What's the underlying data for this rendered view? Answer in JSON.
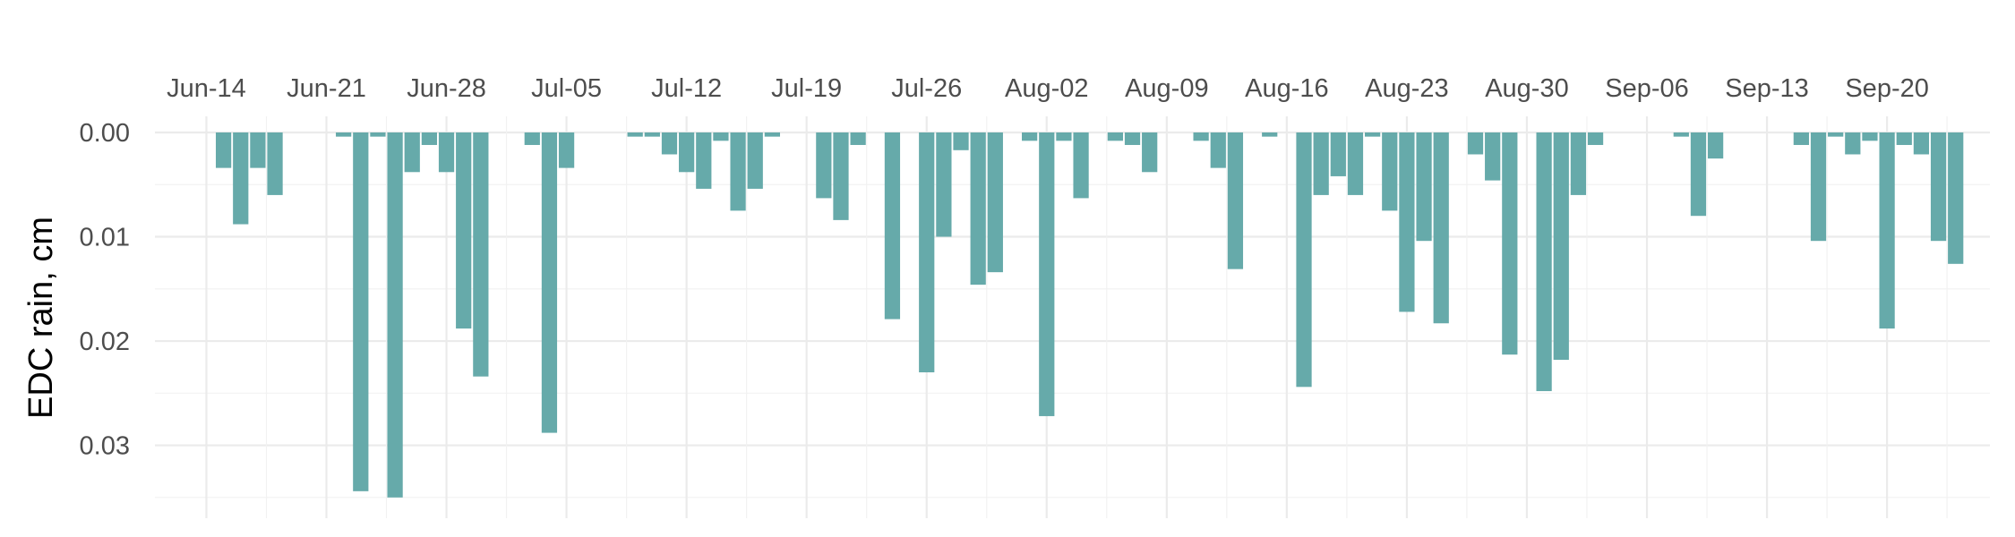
{
  "chart_data": {
    "type": "bar",
    "ylabel": "EDC rain, cm",
    "y_reversed": true,
    "ylim": [
      0,
      0.0351
    ],
    "y_ticks": [
      "0.00",
      "0.01",
      "0.02",
      "0.03"
    ],
    "x_axis_position": "top",
    "x_ticks": [
      "Jun-14",
      "Jun-21",
      "Jun-28",
      "Jul-05",
      "Jul-12",
      "Jul-19",
      "Jul-26",
      "Aug-02",
      "Aug-09",
      "Aug-16",
      "Aug-23",
      "Aug-30",
      "Sep-06",
      "Sep-13",
      "Sep-20"
    ],
    "x_range": [
      "2020-06-11",
      "2020-09-26"
    ],
    "grid": true,
    "bar_color": "#66aaaa",
    "x": [
      "2020-06-13",
      "2020-06-14",
      "2020-06-15",
      "2020-06-16",
      "2020-06-17",
      "2020-06-18",
      "2020-06-19",
      "2020-06-20",
      "2020-06-21",
      "2020-06-22",
      "2020-06-23",
      "2020-06-24",
      "2020-06-25",
      "2020-06-26",
      "2020-06-27",
      "2020-06-28",
      "2020-06-29",
      "2020-06-30",
      "2020-07-01",
      "2020-07-02",
      "2020-07-03",
      "2020-07-04",
      "2020-07-05",
      "2020-07-06",
      "2020-07-07",
      "2020-07-08",
      "2020-07-09",
      "2020-07-10",
      "2020-07-11",
      "2020-07-12",
      "2020-07-13",
      "2020-07-14",
      "2020-07-15",
      "2020-07-16",
      "2020-07-17",
      "2020-07-18",
      "2020-07-19",
      "2020-07-20",
      "2020-07-21",
      "2020-07-22",
      "2020-07-23",
      "2020-07-24",
      "2020-07-25",
      "2020-07-26",
      "2020-07-27",
      "2020-07-28",
      "2020-07-29",
      "2020-07-30",
      "2020-07-31",
      "2020-08-01",
      "2020-08-02",
      "2020-08-03",
      "2020-08-04",
      "2020-08-05",
      "2020-08-06",
      "2020-08-07",
      "2020-08-08",
      "2020-08-09",
      "2020-08-10",
      "2020-08-11",
      "2020-08-12",
      "2020-08-13",
      "2020-08-14",
      "2020-08-15",
      "2020-08-16",
      "2020-08-17",
      "2020-08-18",
      "2020-08-19",
      "2020-08-20",
      "2020-08-21",
      "2020-08-22",
      "2020-08-23",
      "2020-08-24",
      "2020-08-25",
      "2020-08-26",
      "2020-08-27",
      "2020-08-28",
      "2020-08-29",
      "2020-08-30",
      "2020-08-31",
      "2020-09-01",
      "2020-09-02",
      "2020-09-03",
      "2020-09-04",
      "2020-09-05",
      "2020-09-06",
      "2020-09-07",
      "2020-09-08",
      "2020-09-09",
      "2020-09-10",
      "2020-09-11",
      "2020-09-12",
      "2020-09-13",
      "2020-09-14",
      "2020-09-15",
      "2020-09-16",
      "2020-09-17",
      "2020-09-18",
      "2020-09-19",
      "2020-09-20",
      "2020-09-21",
      "2020-09-22",
      "2020-09-23",
      "2020-09-24",
      "2020-09-25"
    ],
    "values": [
      0,
      0,
      0.0034,
      0.0088,
      0.0034,
      0.006,
      0,
      0,
      0,
      0.0004,
      0.0344,
      0.0004,
      0.035,
      0.0038,
      0.0012,
      0.0038,
      0.0188,
      0.0234,
      0,
      0,
      0.0012,
      0.0288,
      0.0034,
      0,
      0,
      0,
      0.0004,
      0.0004,
      0.0021,
      0.0038,
      0.0054,
      0.0008,
      0.0075,
      0.0054,
      0.0004,
      0,
      0,
      0.0063,
      0.0084,
      0.0012,
      0,
      0.0179,
      0,
      0.023,
      0.01,
      0.0017,
      0.0146,
      0.0134,
      0,
      0.0008,
      0.0272,
      0.0008,
      0.0063,
      0,
      0.0008,
      0.0012,
      0.0038,
      0,
      0,
      0.0008,
      0.0034,
      0.0131,
      0,
      0.0004,
      0,
      0.0244,
      0.006,
      0.0042,
      0.006,
      0.0004,
      0.0075,
      0.0172,
      0.0104,
      0.0183,
      0,
      0.0021,
      0.0046,
      0.0213,
      0,
      0.0248,
      0.0218,
      0.006,
      0.0012,
      0,
      0,
      0,
      0,
      0.0004,
      0.008,
      0.0025,
      0,
      0,
      0,
      0,
      0.0012,
      0.0104,
      0.0004,
      0.0021,
      0.0008,
      0.0188,
      0.0012,
      0.0021,
      0.0104,
      0.0126,
      0
    ]
  }
}
